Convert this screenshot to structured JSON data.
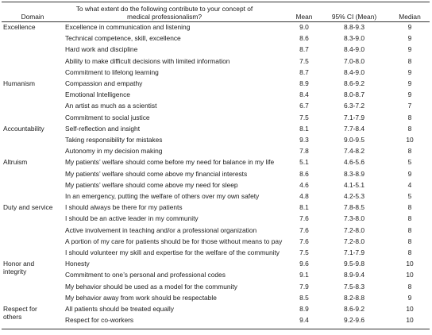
{
  "header": {
    "domain": "Domain",
    "question": "To what extent do the following contribute to your concept of medical professionalism?",
    "mean": "Mean",
    "ci": "95% CI (Mean)",
    "median": "Median"
  },
  "domains": [
    {
      "name": "Excellence",
      "first_row": 0
    },
    {
      "name": "Humanism",
      "first_row": 5
    },
    {
      "name": "Accountability",
      "first_row": 9
    },
    {
      "name": "Altruism",
      "first_row": 12
    },
    {
      "name": "Duty and service",
      "first_row": 16
    },
    {
      "name": "Honor and integrity",
      "first_row": 21
    },
    {
      "name": "Respect for others",
      "first_row": 25
    }
  ],
  "rows": [
    {
      "item": "Excellence in communication and listening",
      "mean": "9.0",
      "ci": "8.8-9.3",
      "median": "9"
    },
    {
      "item": "Technical competence, skill, excellence",
      "mean": "8.6",
      "ci": "8.3-9.0",
      "median": "9"
    },
    {
      "item": "Hard work and discipline",
      "mean": "8.7",
      "ci": "8.4-9.0",
      "median": "9"
    },
    {
      "item": "Ability to make difficult decisions with limited information",
      "mean": "7.5",
      "ci": "7.0-8.0",
      "median": "8"
    },
    {
      "item": "Commitment to lifelong learning",
      "mean": "8.7",
      "ci": "8.4-9.0",
      "median": "9"
    },
    {
      "item": "Compassion and empathy",
      "mean": "8.9",
      "ci": "8.6-9.2",
      "median": "9"
    },
    {
      "item": "Emotional Intelligence",
      "mean": "8.4",
      "ci": "8.0-8.7",
      "median": "9"
    },
    {
      "item": "An artist as much as a scientist",
      "mean": "6.7",
      "ci": "6.3-7.2",
      "median": "7"
    },
    {
      "item": "Commitment to social justice",
      "mean": "7.5",
      "ci": "7.1-7.9",
      "median": "8"
    },
    {
      "item": "Self-reflection and insight",
      "mean": "8.1",
      "ci": "7.7-8.4",
      "median": "8"
    },
    {
      "item": "Taking responsibility for mistakes",
      "mean": "9.3",
      "ci": "9.0-9.5",
      "median": "10"
    },
    {
      "item": "Autonomy in my decision making",
      "mean": "7.8",
      "ci": "7.4-8.2",
      "median": "8"
    },
    {
      "item": "My patients’ welfare should come before my need for balance in my life",
      "mean": "5.1",
      "ci": "4.6-5.6",
      "median": "5"
    },
    {
      "item": "My patients’ welfare should come above my financial interests",
      "mean": "8.6",
      "ci": "8.3-8.9",
      "median": "9"
    },
    {
      "item": "My patients’ welfare should come above my need for sleep",
      "mean": "4.6",
      "ci": "4.1-5.1",
      "median": "4"
    },
    {
      "item": "In an emergency, putting the welfare of others over my own safety",
      "mean": "4.8",
      "ci": "4.2-5.3",
      "median": "5"
    },
    {
      "item": "I should always be there for my patients",
      "mean": "8.1",
      "ci": "7.8-8.5",
      "median": "8"
    },
    {
      "item": "I should be an active leader in my community",
      "mean": "7.6",
      "ci": "7.3-8.0",
      "median": "8"
    },
    {
      "item": "Active involvement in teaching and/or a professional organization",
      "mean": "7.6",
      "ci": "7.2-8.0",
      "median": "8"
    },
    {
      "item": "A portion of my care for patients should be for those without means to pay",
      "mean": "7.6",
      "ci": "7.2-8.0",
      "median": "8"
    },
    {
      "item": "I should volunteer my skill and expertise for the welfare of the community",
      "mean": "7.5",
      "ci": "7.1-7.9",
      "median": "8"
    },
    {
      "item": "Honesty",
      "mean": "9.6",
      "ci": "9.5-9.8",
      "median": "10"
    },
    {
      "item": "Commitment to one’s personal and professional codes",
      "mean": "9.1",
      "ci": "8.9-9.4",
      "median": "10"
    },
    {
      "item": "My behavior should be used as a model for the community",
      "mean": "7.9",
      "ci": "7.5-8.3",
      "median": "8"
    },
    {
      "item": "My behavior away from work should be respectable",
      "mean": "8.5",
      "ci": "8.2-8.8",
      "median": "9"
    },
    {
      "item": "All patients should be treated equally",
      "mean": "8.9",
      "ci": "8.6-9.2",
      "median": "10"
    },
    {
      "item": "Respect for co-workers",
      "mean": "9.4",
      "ci": "9.2-9.6",
      "median": "10"
    }
  ]
}
